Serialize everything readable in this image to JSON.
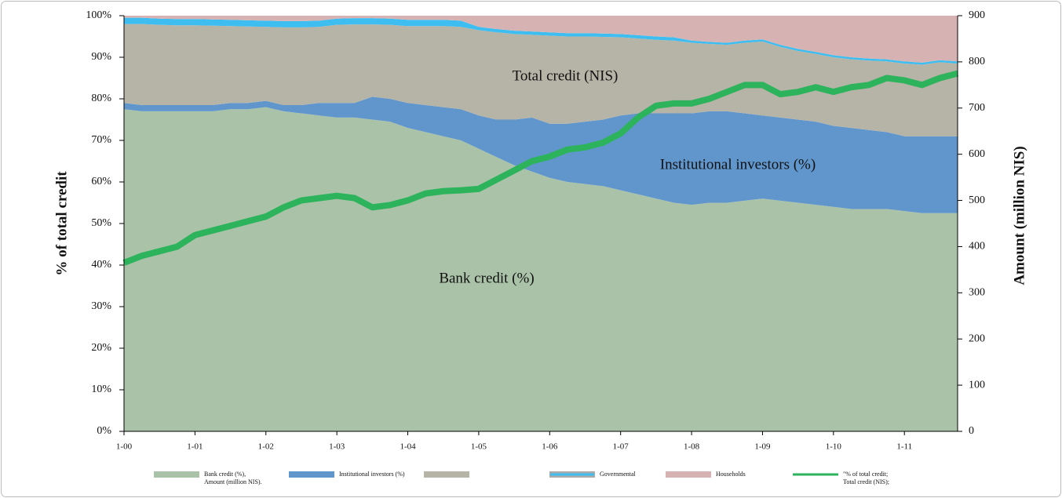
{
  "chart_data": {
    "type": "stacked_area_line",
    "categories": [
      "1-00",
      null,
      null,
      null,
      "1-01",
      null,
      null,
      null,
      "1-02",
      null,
      null,
      null,
      "1-03",
      null,
      null,
      null,
      "1-04",
      null,
      null,
      null,
      "1-05",
      null,
      null,
      null,
      "1-06",
      null,
      null,
      null,
      "1-07",
      null,
      null,
      null,
      "1-08",
      null,
      null,
      null,
      "1-09",
      null,
      null,
      null,
      "1-10",
      null,
      null,
      null,
      "1-11",
      null,
      null,
      null
    ],
    "series": [
      {
        "name": [
          "Bank credit (%),",
          "Amount (million NIS)."
        ],
        "color": "#aac3a8",
        "values": [
          77.5,
          77,
          77,
          77,
          77,
          77,
          77.5,
          77.5,
          78,
          77,
          76.5,
          76,
          75.5,
          75.5,
          75,
          74.5,
          73,
          72,
          71,
          70,
          68,
          66,
          64,
          62.5,
          61,
          60,
          59.5,
          59,
          58,
          57,
          56,
          55,
          54.5,
          55,
          55,
          55.5,
          56,
          55.5,
          55,
          54.5,
          54,
          53.5,
          53.5,
          53.5,
          53,
          52.5,
          52.5,
          52.5
        ]
      },
      {
        "name": [
          "Institutional investors (%)"
        ],
        "color": "#6096cc",
        "values": [
          1.5,
          1.5,
          1.5,
          1.5,
          1.5,
          1.5,
          1.5,
          1.5,
          1.5,
          1.5,
          2,
          3,
          3.5,
          3.5,
          5.5,
          5.5,
          6,
          6.5,
          7,
          7.5,
          8,
          9,
          11,
          13,
          13,
          14,
          15,
          16,
          18,
          19.5,
          20.5,
          21.5,
          22,
          22,
          22,
          21,
          20,
          20,
          20,
          20,
          19.5,
          19.5,
          19,
          18.5,
          18,
          18.5,
          18.5,
          18.5
        ]
      },
      {
        "color": "#b6b3a7",
        "values": [
          19,
          19.5,
          19.3,
          19.2,
          19.2,
          19.1,
          18.5,
          18.4,
          17.8,
          18.7,
          18.7,
          18.3,
          18.8,
          18.9,
          17.4,
          17.8,
          18.5,
          19,
          19.5,
          19.8,
          20.5,
          21,
          20.6,
          19.9,
          21.2,
          21,
          20.5,
          19.9,
          18.8,
          18,
          17.7,
          17.5,
          17,
          16.2,
          16,
          17,
          17.8,
          17,
          16.5,
          16.3,
          16.5,
          16.5,
          16.7,
          17,
          17.5,
          17.2,
          17.8,
          17.5
        ]
      },
      {
        "name": [
          "Governmental"
        ],
        "color": "#3dbdf0",
        "values": [
          1.5,
          1.5,
          1.5,
          1.5,
          1.5,
          1.5,
          1.5,
          1.5,
          1.5,
          1.5,
          1.5,
          1.5,
          1.5,
          1.5,
          1.5,
          1.5,
          1.5,
          1.5,
          1.5,
          1.5,
          0.8,
          0.8,
          0.8,
          0.8,
          0.8,
          0.8,
          0.8,
          0.8,
          0.8,
          0.8,
          0.8,
          0.8,
          0.5,
          0.5,
          0.5,
          0.5,
          0.5,
          0.5,
          0.5,
          0.5,
          0.5,
          0.5,
          0.5,
          0.5,
          0.5,
          0.5,
          0.5,
          0.5
        ]
      },
      {
        "name": [
          "Households"
        ],
        "color": "#d6b3b2",
        "values": [
          0.5,
          0.5,
          0.7,
          0.8,
          0.8,
          0.9,
          1,
          1.1,
          1.2,
          1.3,
          1.3,
          1.2,
          0.7,
          0.6,
          0.6,
          0.7,
          1,
          1,
          1,
          1.2,
          2.7,
          3.2,
          3.6,
          3.8,
          4,
          4.2,
          4.2,
          4.3,
          4.4,
          4.7,
          5,
          5.2,
          6,
          6.3,
          6.5,
          6,
          5.7,
          7,
          8,
          8.7,
          9.5,
          10,
          10.3,
          10.5,
          11,
          11.3,
          10.7,
          11
        ]
      },
      {
        "name": [
          "\"% of total credit;",
          "Total credit (NIS);"
        ],
        "color": "#2db35c",
        "axis": "y2",
        "line": true,
        "values": [
          365,
          380,
          390,
          400,
          425,
          435,
          445,
          455,
          465,
          485,
          500,
          505,
          510,
          505,
          485,
          490,
          500,
          515,
          520,
          522,
          525,
          545,
          565,
          585,
          595,
          610,
          615,
          625,
          645,
          680,
          705,
          710,
          710,
          720,
          735,
          750,
          750,
          730,
          735,
          745,
          735,
          745,
          750,
          765,
          760,
          750,
          765,
          775
        ]
      }
    ],
    "ylabel": "% of total credit",
    "y2label": "Amount (million NIS)",
    "ylim": [
      0,
      100
    ],
    "yticks": [
      {
        "value": 0,
        "label": "0%"
      },
      {
        "value": 10,
        "label": "10%"
      },
      {
        "value": 20,
        "label": "20%"
      },
      {
        "value": 30,
        "label": "30%"
      },
      {
        "value": 40,
        "label": "40%"
      },
      {
        "value": 50,
        "label": "50%"
      },
      {
        "value": 60,
        "label": "60%"
      },
      {
        "value": 70,
        "label": "70%"
      },
      {
        "value": 80,
        "label": "80%"
      },
      {
        "value": 90,
        "label": "90%"
      },
      {
        "value": 100,
        "label": "100%"
      }
    ],
    "y2lim": [
      0,
      900
    ],
    "y2ticks": [
      0,
      100,
      200,
      300,
      400,
      500,
      600,
      700,
      800,
      900
    ],
    "annotations": [
      "Total credit (NIS)",
      "Institutional investors (%)",
      "Bank credit (%)"
    ],
    "legend": "bottom"
  }
}
